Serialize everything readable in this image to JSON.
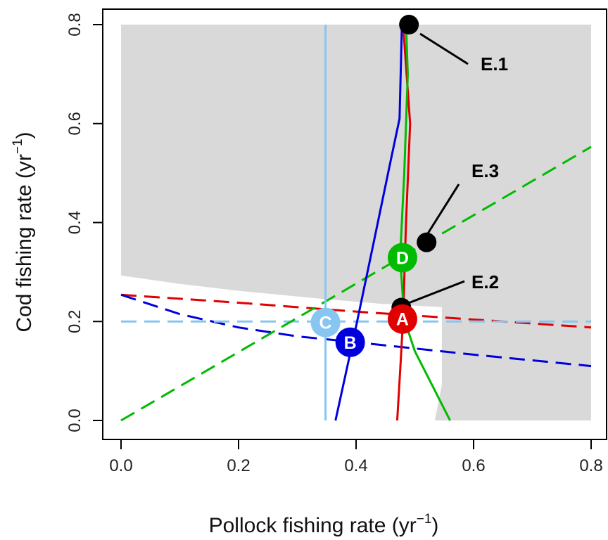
{
  "chart_data": {
    "type": "line",
    "xlabel_text": "Pollock fishing rate (yr",
    "ylabel_text": "Cod fishing rate (yr",
    "axis_unit_superscript": "−1",
    "axis_unit_close": ")",
    "xlim": [
      0.0,
      0.8
    ],
    "ylim": [
      0.0,
      0.8
    ],
    "x_ticks": [
      {
        "value": 0.0,
        "label": "0.0"
      },
      {
        "value": 0.2,
        "label": "0.2"
      },
      {
        "value": 0.4,
        "label": "0.4"
      },
      {
        "value": 0.6,
        "label": "0.6"
      },
      {
        "value": 0.8,
        "label": "0.8"
      }
    ],
    "y_ticks": [
      {
        "value": 0.0,
        "label": "0.0"
      },
      {
        "value": 0.2,
        "label": "0.2"
      },
      {
        "value": 0.4,
        "label": "0.4"
      },
      {
        "value": 0.6,
        "label": "0.6"
      },
      {
        "value": 0.8,
        "label": "0.8"
      }
    ],
    "grid": false,
    "shaded_region": {
      "color": "#d9d9d9",
      "boundary": [
        [
          0.0,
          0.293
        ],
        [
          0.0,
          0.8
        ],
        [
          0.8,
          0.8
        ],
        [
          0.8,
          0.0
        ],
        [
          0.534,
          0.0
        ],
        [
          0.546,
          0.072
        ],
        [
          0.546,
          0.229
        ],
        [
          0.44,
          0.236
        ],
        [
          0.34,
          0.246
        ],
        [
          0.2,
          0.262
        ],
        [
          0.1,
          0.276
        ],
        [
          0.0,
          0.293
        ]
      ]
    },
    "series": [
      {
        "color": "#0000dd",
        "dash": false,
        "points": [
          [
            0.365,
            0.0
          ],
          [
            0.4,
            0.19
          ],
          [
            0.43,
            0.36
          ],
          [
            0.458,
            0.52
          ],
          [
            0.474,
            0.61
          ],
          [
            0.478,
            0.8
          ]
        ]
      },
      {
        "color": "#e00000",
        "dash": false,
        "points": [
          [
            0.47,
            0.0
          ],
          [
            0.475,
            0.1
          ],
          [
            0.48,
            0.205
          ],
          [
            0.485,
            0.4
          ],
          [
            0.492,
            0.6
          ],
          [
            0.48,
            0.8
          ]
        ]
      },
      {
        "color": "#00bb00",
        "dash": false,
        "points": [
          [
            0.56,
            0.0
          ],
          [
            0.53,
            0.07
          ],
          [
            0.5,
            0.14
          ],
          [
            0.482,
            0.205
          ],
          [
            0.475,
            0.33
          ],
          [
            0.482,
            0.5
          ],
          [
            0.488,
            0.7
          ],
          [
            0.485,
            0.8
          ]
        ]
      },
      {
        "color": "#87c6f0",
        "dash": false,
        "points": [
          [
            0.348,
            0.0
          ],
          [
            0.348,
            0.8
          ]
        ]
      },
      {
        "color": "#e00000",
        "dash": true,
        "points": [
          [
            0.0,
            0.254
          ],
          [
            0.2,
            0.238
          ],
          [
            0.4,
            0.22
          ],
          [
            0.6,
            0.204
          ],
          [
            0.8,
            0.188
          ]
        ]
      },
      {
        "color": "#0000dd",
        "dash": true,
        "points": [
          [
            0.0,
            0.254
          ],
          [
            0.1,
            0.215
          ],
          [
            0.2,
            0.188
          ],
          [
            0.3,
            0.17
          ],
          [
            0.4,
            0.158
          ],
          [
            0.6,
            0.133
          ],
          [
            0.8,
            0.11
          ]
        ]
      },
      {
        "color": "#87c6f0",
        "dash": true,
        "points": [
          [
            0.0,
            0.2
          ],
          [
            0.8,
            0.2
          ]
        ]
      },
      {
        "color": "#00bb00",
        "dash": true,
        "points": [
          [
            0.0,
            0.0
          ],
          [
            0.8,
            0.553
          ]
        ]
      }
    ],
    "markers": [
      {
        "label": "C",
        "x": 0.348,
        "y": 0.198,
        "color": "#87c6f0"
      },
      {
        "label": "B",
        "x": 0.39,
        "y": 0.158,
        "color": "#0000dd"
      },
      {
        "label": "A",
        "x": 0.479,
        "y": 0.205,
        "color": "#e00000"
      },
      {
        "label": "D",
        "x": 0.479,
        "y": 0.329,
        "color": "#00bb00"
      }
    ],
    "annotations": [
      {
        "label": "E.1",
        "x": 0.49,
        "y": 0.8
      },
      {
        "label": "E.2",
        "x": 0.477,
        "y": 0.228
      },
      {
        "label": "E.3",
        "x": 0.52,
        "y": 0.36
      }
    ]
  }
}
